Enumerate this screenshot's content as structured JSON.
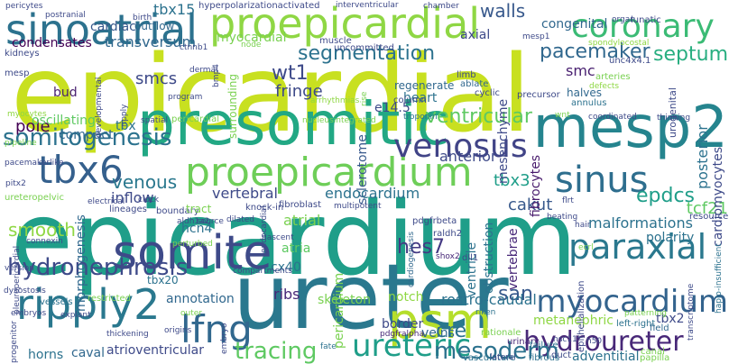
{
  "words": [
    {
      "text": "epicardial",
      "color": "#c8e020"
    },
    {
      "text": "epicardium",
      "color": "#1f9e89"
    },
    {
      "text": "ureter",
      "color": "#2a788e"
    },
    {
      "text": "presomitic",
      "color": "#22a884"
    },
    {
      "text": "proepicardial",
      "color": "#8fd744"
    },
    {
      "text": "mesp2",
      "color": "#25848e"
    },
    {
      "text": "sinoatrial",
      "color": "#2c728e"
    },
    {
      "text": "proepicardium",
      "color": "#6ece58"
    },
    {
      "text": "somite",
      "color": "#3e4a89"
    },
    {
      "text": "psm",
      "color": "#b5de2b"
    },
    {
      "text": "ripply2",
      "color": "#2a788e"
    },
    {
      "text": "lfng",
      "color": "#31688e"
    },
    {
      "text": "tbx6",
      "color": "#35608d"
    },
    {
      "text": "venosus",
      "color": "#414487"
    },
    {
      "text": "sinus",
      "color": "#2e6e8e"
    },
    {
      "text": "coronary",
      "color": "#3bbb75"
    },
    {
      "text": "paraxial",
      "color": "#2a788e"
    },
    {
      "text": "myocardium",
      "color": "#33638d"
    },
    {
      "text": "ureteric",
      "color": "#1f9e89"
    },
    {
      "text": "hydroureter",
      "color": "#482878"
    },
    {
      "text": "hydronephrosis",
      "color": "#3e4a89"
    },
    {
      "text": "somitogenesis",
      "color": "#2c728e"
    },
    {
      "text": "tracing",
      "color": "#5ec962"
    },
    {
      "text": "mesoderm",
      "color": "#2c728e"
    },
    {
      "text": "segmentation",
      "color": "#2c728e"
    },
    {
      "text": "pacemaker",
      "color": "#31688e"
    },
    {
      "text": "septum",
      "color": "#28ae80"
    },
    {
      "text": "epdcs",
      "color": "#1f9e89"
    },
    {
      "text": "walls",
      "color": "#38598c"
    },
    {
      "text": "ventricular",
      "color": "#5ec962"
    },
    {
      "text": "venous",
      "color": "#2a788e"
    },
    {
      "text": "smooth",
      "color": "#8fd744"
    },
    {
      "text": "condensates",
      "color": "#440154"
    },
    {
      "text": "transversum",
      "color": "#31688e"
    },
    {
      "text": "tbx3",
      "color": "#1f9e89"
    },
    {
      "text": "hes7",
      "color": "#443983"
    },
    {
      "text": "wt1",
      "color": "#3e4a89"
    },
    {
      "text": "san",
      "color": "#38598c"
    },
    {
      "text": "cre",
      "color": "#2c728e"
    },
    {
      "text": "cakut",
      "color": "#38598c"
    },
    {
      "text": "tcf21",
      "color": "#5ec962"
    },
    {
      "text": "tbx15",
      "color": "#2c728e"
    },
    {
      "text": "cardiac",
      "color": "#38598c"
    },
    {
      "text": "outflow",
      "color": "#31688e"
    },
    {
      "text": "fibrocytes",
      "color": "#481a6c"
    },
    {
      "text": "posterior",
      "color": "#2c728e"
    },
    {
      "text": "cardiomyocytes",
      "color": "#3e4a89"
    },
    {
      "text": "myocardial",
      "color": "#7ad151"
    },
    {
      "text": "sclerotome",
      "color": "#38598c"
    },
    {
      "text": "mesenchyme",
      "color": "#3e4a89"
    },
    {
      "text": "congenital",
      "color": "#31688e"
    },
    {
      "text": "axial",
      "color": "#3e4a89"
    },
    {
      "text": "smc",
      "color": "#481f70"
    },
    {
      "text": "smcs",
      "color": "#3e4a89"
    },
    {
      "text": "heart",
      "color": "#2c728e"
    },
    {
      "text": "regenerate",
      "color": "#31688e"
    },
    {
      "text": "fringe",
      "color": "#3e4a89"
    },
    {
      "text": "e14.5",
      "color": "#3e4a89"
    },
    {
      "text": "anterior",
      "color": "#3e4a89"
    },
    {
      "text": "pole",
      "color": "#440154"
    },
    {
      "text": "compact",
      "color": "#31688e"
    },
    {
      "text": "oscillating",
      "color": "#5ec962"
    },
    {
      "text": "tbx",
      "color": "#2c728e"
    },
    {
      "text": "bud",
      "color": "#481f70"
    },
    {
      "text": "inflow",
      "color": "#3e4a89"
    },
    {
      "text": "vertebral",
      "color": "#3e4a89"
    },
    {
      "text": "endocardium",
      "color": "#2c728e"
    },
    {
      "text": "atrial",
      "color": "#7ad151"
    },
    {
      "text": "hcn4",
      "color": "#2c728e"
    },
    {
      "text": "atria",
      "color": "#5ec962"
    },
    {
      "text": "cx40",
      "color": "#2c728e"
    },
    {
      "text": "ribs",
      "color": "#482878"
    },
    {
      "text": "skeleton",
      "color": "#7ad151"
    },
    {
      "text": "notch",
      "color": "#8fd744"
    },
    {
      "text": "rostro-caudal",
      "color": "#2c728e"
    },
    {
      "text": "malformations",
      "color": "#2c728e"
    },
    {
      "text": "ventricle",
      "color": "#2c728e"
    },
    {
      "text": "vertebrae",
      "color": "#482878"
    },
    {
      "text": "obstruction",
      "color": "#2c728e"
    },
    {
      "text": "border",
      "color": "#3e4a89"
    },
    {
      "text": "veins",
      "color": "#31688e"
    },
    {
      "text": "pericardium",
      "color": "#7ad151"
    },
    {
      "text": "annotation",
      "color": "#31688e"
    },
    {
      "text": "morphogenesis",
      "color": "#31688e"
    },
    {
      "text": "horns",
      "color": "#2c728e"
    },
    {
      "text": "caval",
      "color": "#31688e"
    },
    {
      "text": "atrioventricular",
      "color": "#3e4a89"
    },
    {
      "text": "metanephric",
      "color": "#8fd744"
    },
    {
      "text": "adventitial",
      "color": "#2c728e"
    },
    {
      "text": "polarity",
      "color": "#2c728e"
    },
    {
      "text": "resource",
      "color": "#3e4a89"
    },
    {
      "text": "tbx2",
      "color": "#3e4a89"
    },
    {
      "text": "tbx20",
      "color": "#2c728e"
    },
    {
      "text": "urinary",
      "color": "#482878"
    },
    {
      "text": "vessels",
      "color": "#2c728e"
    },
    {
      "text": "cardiogenesis",
      "color": "#31688e"
    },
    {
      "text": "pdgfrbeta",
      "color": "#3e4a89"
    },
    {
      "text": "raldh2",
      "color": "#3e4a89"
    },
    {
      "text": "nascent",
      "color": "#3e4a89"
    },
    {
      "text": "dll1",
      "color": "#3e4a89"
    },
    {
      "text": "shox2",
      "color": "#482878"
    },
    {
      "text": "pdgfralpha",
      "color": "#482878"
    },
    {
      "text": "rationale",
      "color": "#7ad151"
    },
    {
      "text": "riken",
      "color": "#2c728e"
    },
    {
      "text": "fibrous",
      "color": "#2c728e"
    },
    {
      "text": "failure",
      "color": "#2c728e"
    },
    {
      "text": "vasculature",
      "color": "#2c728e"
    },
    {
      "text": "left-right",
      "color": "#2c728e"
    },
    {
      "text": "field",
      "color": "#31688e"
    },
    {
      "text": "haplo-insufficient",
      "color": "#2c728e"
    },
    {
      "text": "fate",
      "color": "#2c728e"
    },
    {
      "text": "lineages",
      "color": "#3e4a89"
    },
    {
      "text": "boundary",
      "color": "#3e4a89"
    },
    {
      "text": "tract",
      "color": "#7ad151"
    },
    {
      "text": "surrounding",
      "color": "#7ad151"
    },
    {
      "text": "column",
      "color": "#3e4a89"
    },
    {
      "text": "halves",
      "color": "#31688e"
    },
    {
      "text": "annulus",
      "color": "#2c728e"
    },
    {
      "text": "arteries",
      "color": "#7ad151"
    },
    {
      "text": "defects",
      "color": "#8fd744"
    },
    {
      "text": "urogenital",
      "color": "#3e4a89"
    },
    {
      "text": "limb",
      "color": "#3e4a89"
    },
    {
      "text": "ablate",
      "color": "#31688e"
    },
    {
      "text": "cyclic",
      "color": "#3e4a89"
    },
    {
      "text": "precursor",
      "color": "#3e4a89"
    },
    {
      "text": "troponin",
      "color": "#2c728e"
    },
    {
      "text": "rise",
      "color": "#7ad151"
    },
    {
      "text": "arrhythmias",
      "color": "#8fd744"
    },
    {
      "text": "developmental",
      "color": "#3e4a89"
    },
    {
      "text": "ripply",
      "color": "#3e4a89"
    },
    {
      "text": "program",
      "color": "#3e4a89"
    },
    {
      "text": "dermal",
      "color": "#3e4a89"
    },
    {
      "text": "bmp4",
      "color": "#3e4a89"
    },
    {
      "text": "spatial",
      "color": "#3e4a89"
    },
    {
      "text": "pericardial",
      "color": "#7ad151"
    },
    {
      "text": "nucleusintegrated",
      "color": "#7ad151"
    },
    {
      "text": "myocytes",
      "color": "#8fd744"
    },
    {
      "text": "pipeline",
      "color": "#7ad151"
    },
    {
      "text": "pacemakerlike",
      "color": "#3e4a89"
    },
    {
      "text": "pitx2",
      "color": "#3e4a89"
    },
    {
      "text": "ureteropelvic",
      "color": "#7ad151"
    },
    {
      "text": "electrical",
      "color": "#3e4a89"
    },
    {
      "text": "clock",
      "color": "#3e4a89"
    },
    {
      "text": "aldh1a2",
      "color": "#3e4a89"
    },
    {
      "text": "perturbed",
      "color": "#7ad151"
    },
    {
      "text": "source",
      "color": "#3e4a89"
    },
    {
      "text": "dilated",
      "color": "#3e4a89"
    },
    {
      "text": "connexin",
      "color": "#3e4a89"
    },
    {
      "text": "pleuropericardial",
      "color": "#3e4a89"
    },
    {
      "text": "version",
      "color": "#3e4a89"
    },
    {
      "text": "dysostosis",
      "color": "#3e4a89"
    },
    {
      "text": "embryos",
      "color": "#3e4a89"
    },
    {
      "text": "explant",
      "color": "#3e4a89"
    },
    {
      "text": "restricted",
      "color": "#7ad151"
    },
    {
      "text": "progenitor",
      "color": "#3e4a89"
    },
    {
      "text": "thickening",
      "color": "#3e4a89"
    },
    {
      "text": "origins",
      "color": "#3e4a89"
    },
    {
      "text": "outer",
      "color": "#7ad151"
    },
    {
      "text": "embryo",
      "color": "#3e4a89"
    },
    {
      "text": "compartments",
      "color": "#3e4a89"
    },
    {
      "text": "fibroblast",
      "color": "#3e4a89"
    },
    {
      "text": "endocardial",
      "color": "#3e4a89"
    },
    {
      "text": "knock-in",
      "color": "#3e4a89"
    },
    {
      "text": "multipotent",
      "color": "#3e4a89"
    },
    {
      "text": "beating",
      "color": "#3e4a89"
    },
    {
      "text": "flrt",
      "color": "#3e4a89"
    },
    {
      "text": "epithelialization",
      "color": "#3e4a89"
    },
    {
      "text": "transcriptome",
      "color": "#3e4a89"
    },
    {
      "text": "ecrl",
      "color": "#7ad151"
    },
    {
      "text": "patterning",
      "color": "#7ad151"
    },
    {
      "text": "hair",
      "color": "#3e4a89"
    },
    {
      "text": "lateral",
      "color": "#3e4a89"
    },
    {
      "text": "duct",
      "color": "#3e4a89"
    },
    {
      "text": "nsc11",
      "color": "#3e4a89"
    },
    {
      "text": "canal",
      "color": "#7ad151"
    },
    {
      "text": "papilla",
      "color": "#7ad151"
    },
    {
      "text": "h50",
      "color": "#3e4a89"
    },
    {
      "text": "pericytes",
      "color": "#3e4a89"
    },
    {
      "text": "postranial",
      "color": "#3e4a89"
    },
    {
      "text": "hyperpolarizationactivated",
      "color": "#3e4a89"
    },
    {
      "text": "interventricular",
      "color": "#3e4a89"
    },
    {
      "text": "chamber",
      "color": "#3e4a89"
    },
    {
      "text": "birth",
      "color": "#3e4a89"
    },
    {
      "text": "organ",
      "color": "#3e4a89"
    },
    {
      "text": "lunatic",
      "color": "#3e4a89"
    },
    {
      "text": "spondylocostal",
      "color": "#8fd744"
    },
    {
      "text": "uncommitted",
      "color": "#3e4a89"
    },
    {
      "text": "muscle",
      "color": "#3e4a89"
    },
    {
      "text": "node",
      "color": "#7ad151"
    },
    {
      "text": "ctnnb1",
      "color": "#3e4a89"
    },
    {
      "text": "mesp1",
      "color": "#3e4a89"
    },
    {
      "text": "unc4x4.1",
      "color": "#3e4a89"
    },
    {
      "text": "kidneys",
      "color": "#3e4a89"
    },
    {
      "text": "mesp",
      "color": "#3e4a89"
    },
    {
      "text": "coordinated",
      "color": "#3e4a89"
    },
    {
      "text": "thinning",
      "color": "#3e4a89"
    },
    {
      "text": "wnt",
      "color": "#7ad151"
    }
  ]
}
